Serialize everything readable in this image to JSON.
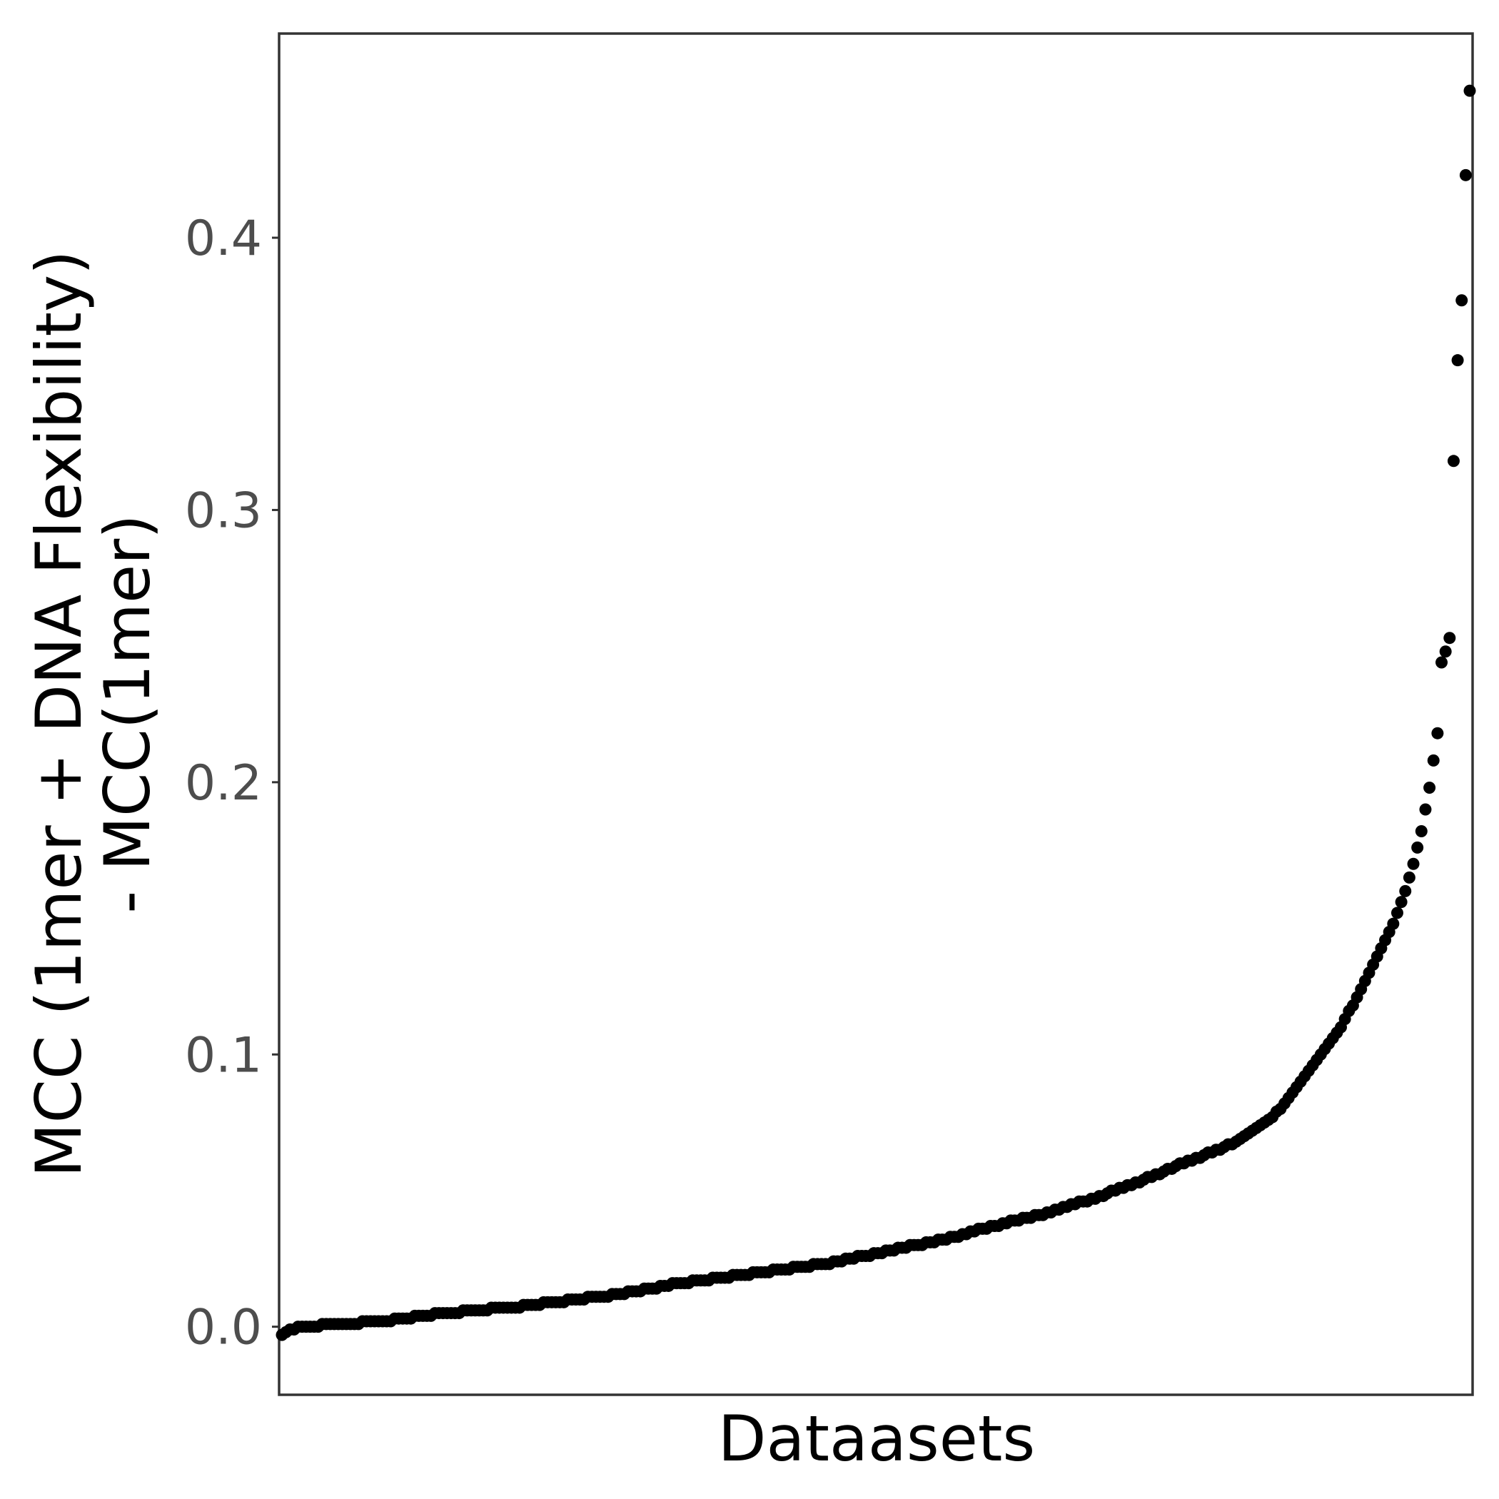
{
  "chart_data": {
    "type": "scatter",
    "title": "",
    "xlabel": "Dataasets",
    "ylabel_lines": [
      "MCC (1mer + DNA Flexibility)",
      "- MCC(1mer)"
    ],
    "ylim": [
      -0.025,
      0.475
    ],
    "xlim": [
      1,
      300
    ],
    "y_ticks": [
      0.0,
      0.1,
      0.2,
      0.3,
      0.4
    ],
    "y_tick_labels": [
      "0.0",
      "0.1",
      "0.2",
      "0.3",
      "0.4"
    ],
    "x_ticks_shown": false,
    "grid": false,
    "point_color": "#000000",
    "series": [
      {
        "values": [
          -0.003,
          -0.002,
          -0.001,
          -0.001,
          0.0,
          0.0,
          0.0,
          0.0,
          0.0,
          0.0,
          0.001,
          0.001,
          0.001,
          0.001,
          0.001,
          0.001,
          0.001,
          0.001,
          0.001,
          0.001,
          0.002,
          0.002,
          0.002,
          0.002,
          0.002,
          0.002,
          0.002,
          0.002,
          0.003,
          0.003,
          0.003,
          0.003,
          0.003,
          0.004,
          0.004,
          0.004,
          0.004,
          0.004,
          0.005,
          0.005,
          0.005,
          0.005,
          0.005,
          0.005,
          0.005,
          0.006,
          0.006,
          0.006,
          0.006,
          0.006,
          0.006,
          0.006,
          0.007,
          0.007,
          0.007,
          0.007,
          0.007,
          0.007,
          0.007,
          0.007,
          0.008,
          0.008,
          0.008,
          0.008,
          0.008,
          0.009,
          0.009,
          0.009,
          0.009,
          0.009,
          0.009,
          0.01,
          0.01,
          0.01,
          0.01,
          0.01,
          0.011,
          0.011,
          0.011,
          0.011,
          0.011,
          0.011,
          0.012,
          0.012,
          0.012,
          0.012,
          0.013,
          0.013,
          0.013,
          0.013,
          0.014,
          0.014,
          0.014,
          0.014,
          0.015,
          0.015,
          0.015,
          0.016,
          0.016,
          0.016,
          0.016,
          0.016,
          0.017,
          0.017,
          0.017,
          0.017,
          0.017,
          0.018,
          0.018,
          0.018,
          0.018,
          0.018,
          0.019,
          0.019,
          0.019,
          0.019,
          0.019,
          0.02,
          0.02,
          0.02,
          0.02,
          0.02,
          0.021,
          0.021,
          0.021,
          0.021,
          0.021,
          0.022,
          0.022,
          0.022,
          0.022,
          0.022,
          0.023,
          0.023,
          0.023,
          0.023,
          0.023,
          0.024,
          0.024,
          0.024,
          0.025,
          0.025,
          0.025,
          0.026,
          0.026,
          0.026,
          0.026,
          0.027,
          0.027,
          0.027,
          0.028,
          0.028,
          0.028,
          0.029,
          0.029,
          0.029,
          0.03,
          0.03,
          0.03,
          0.03,
          0.031,
          0.031,
          0.031,
          0.032,
          0.032,
          0.032,
          0.033,
          0.033,
          0.033,
          0.034,
          0.034,
          0.035,
          0.035,
          0.036,
          0.036,
          0.036,
          0.037,
          0.037,
          0.037,
          0.038,
          0.038,
          0.039,
          0.039,
          0.039,
          0.04,
          0.04,
          0.04,
          0.041,
          0.041,
          0.041,
          0.042,
          0.042,
          0.043,
          0.043,
          0.044,
          0.044,
          0.045,
          0.045,
          0.046,
          0.046,
          0.046,
          0.047,
          0.047,
          0.048,
          0.048,
          0.049,
          0.05,
          0.05,
          0.051,
          0.051,
          0.052,
          0.052,
          0.053,
          0.053,
          0.054,
          0.055,
          0.055,
          0.056,
          0.056,
          0.057,
          0.058,
          0.058,
          0.059,
          0.06,
          0.06,
          0.061,
          0.061,
          0.062,
          0.062,
          0.063,
          0.064,
          0.064,
          0.065,
          0.065,
          0.066,
          0.067,
          0.067,
          0.068,
          0.069,
          0.07,
          0.071,
          0.072,
          0.073,
          0.074,
          0.075,
          0.076,
          0.077,
          0.079,
          0.08,
          0.082,
          0.084,
          0.086,
          0.088,
          0.09,
          0.092,
          0.094,
          0.096,
          0.098,
          0.1,
          0.102,
          0.104,
          0.106,
          0.108,
          0.11,
          0.113,
          0.116,
          0.118,
          0.121,
          0.124,
          0.127,
          0.13,
          0.133,
          0.136,
          0.139,
          0.142,
          0.145,
          0.148,
          0.152,
          0.156,
          0.16,
          0.165,
          0.17,
          0.176,
          0.182,
          0.19,
          0.198,
          0.208,
          0.218,
          0.244,
          0.248,
          0.253,
          0.318,
          0.355,
          0.377,
          0.423,
          0.454
        ]
      }
    ]
  }
}
